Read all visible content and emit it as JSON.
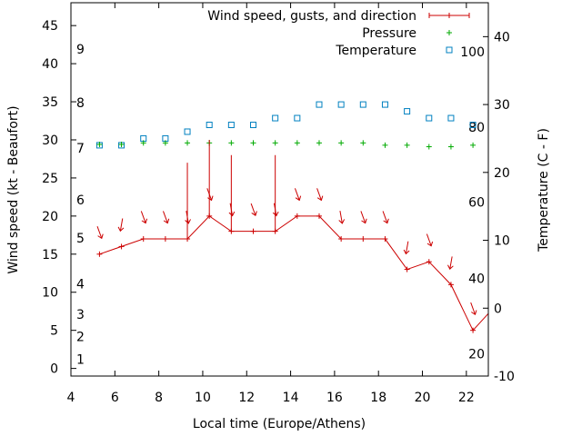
{
  "chart_data": {
    "type": "line",
    "xlabel": "Local time (Europe/Athens)",
    "ylabel": "Wind speed (kt - Beaufort)",
    "y2label": "Temperature (C - F)",
    "xlim": [
      4,
      23
    ],
    "ylim": [
      -1,
      48
    ],
    "y2lim": [
      -10,
      45
    ],
    "x_ticks": [
      4,
      6,
      8,
      10,
      12,
      14,
      16,
      18,
      20,
      22
    ],
    "y_ticks": [
      0,
      5,
      10,
      15,
      20,
      25,
      30,
      35,
      40,
      45
    ],
    "y2_ticks": [
      -10,
      0,
      10,
      20,
      30,
      40
    ],
    "beaufort_labels": [
      {
        "label": "1",
        "kt": 1.2
      },
      {
        "label": "2",
        "kt": 4.2
      },
      {
        "label": "3",
        "kt": 7.1
      },
      {
        "label": "4",
        "kt": 11.1
      },
      {
        "label": "5",
        "kt": 17.1
      },
      {
        "label": "6",
        "kt": 22.1
      },
      {
        "label": "7",
        "kt": 28.9
      },
      {
        "label": "8",
        "kt": 34.9
      },
      {
        "label": "9",
        "kt": 41.9
      }
    ],
    "fahrenheit_labels": [
      {
        "label": "20",
        "c": -6.7
      },
      {
        "label": "40",
        "c": 4.4
      },
      {
        "label": "60",
        "c": 15.6
      },
      {
        "label": "80",
        "c": 26.7
      },
      {
        "label": "100",
        "c": 37.8
      }
    ],
    "legend_position": "top-right",
    "series": [
      {
        "name": "Wind speed, gusts, and direction",
        "color": "#cc0000",
        "x": [
          5.3,
          6.3,
          7.3,
          8.3,
          9.3,
          10.3,
          11.3,
          12.3,
          13.3,
          14.3,
          15.3,
          16.3,
          17.3,
          18.3,
          19.3,
          20.3,
          21.3,
          22.3
        ],
        "y": [
          15,
          16,
          17,
          17,
          17,
          20,
          18,
          18,
          18,
          20,
          20,
          17,
          17,
          17,
          13,
          14,
          11,
          5
        ],
        "gusts": [
          null,
          null,
          null,
          null,
          27,
          30,
          28,
          null,
          28,
          null,
          null,
          null,
          null,
          null,
          null,
          null,
          null,
          null
        ],
        "direction_deg": [
          340,
          10,
          340,
          340,
          350,
          340,
          350,
          340,
          350,
          340,
          340,
          350,
          340,
          340,
          10,
          340,
          10,
          340
        ]
      },
      {
        "name": "Pressure",
        "color": "#00aa00",
        "x": [
          5.3,
          6.3,
          7.3,
          8.3,
          9.3,
          10.3,
          11.3,
          12.3,
          13.3,
          14.3,
          15.3,
          16.3,
          17.3,
          18.3,
          19.3,
          20.3,
          21.3,
          22.3
        ],
        "y": [
          29.4,
          29.4,
          29.6,
          29.6,
          29.6,
          29.6,
          29.6,
          29.6,
          29.6,
          29.6,
          29.6,
          29.6,
          29.6,
          29.3,
          29.3,
          29.1,
          29.1,
          29.3
        ]
      },
      {
        "name": "Temperature",
        "color": "#0080c0",
        "x": [
          5.3,
          6.3,
          7.3,
          8.3,
          9.3,
          10.3,
          11.3,
          12.3,
          13.3,
          14.3,
          15.3,
          16.3,
          17.3,
          18.3,
          19.3,
          20.3,
          21.3,
          22.3
        ],
        "y": [
          24,
          24,
          25,
          25,
          26,
          27,
          27,
          27,
          28,
          28,
          30,
          30,
          30,
          30,
          29,
          28,
          28,
          27
        ]
      }
    ]
  }
}
